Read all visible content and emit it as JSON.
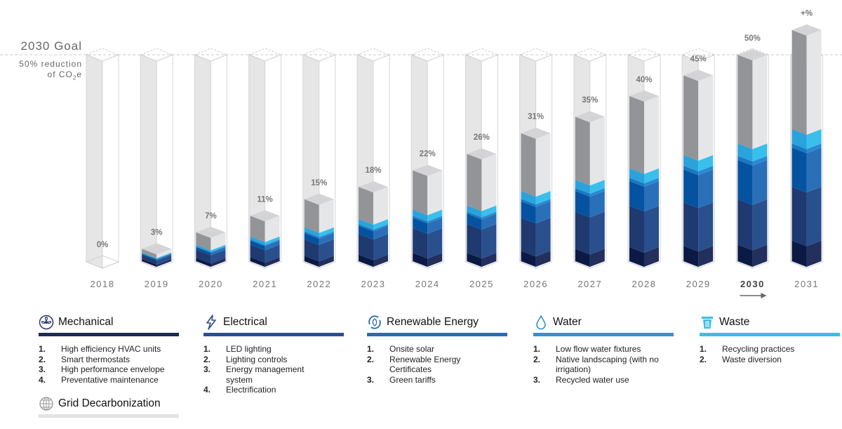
{
  "goal": {
    "title": "2030 Goal",
    "subtitle_line1": "50% reduction",
    "subtitle_line2_pre": "of CO",
    "subtitle_sub": "2",
    "subtitle_line2_post": "e"
  },
  "chart_data": {
    "type": "bar",
    "stacked": true,
    "style": "isometric 3D columns",
    "goal_line_value": 50,
    "ylim": [
      0,
      56
    ],
    "categories": [
      "2018",
      "2019",
      "2020",
      "2021",
      "2022",
      "2023",
      "2024",
      "2025",
      "2026",
      "2027",
      "2028",
      "2029",
      "2030",
      "2031"
    ],
    "highlight_category": "2030",
    "data_labels": [
      "0%",
      "3%",
      "7%",
      "11%",
      "15%",
      "18%",
      "22%",
      "26%",
      "31%",
      "35%",
      "40%",
      "45%",
      "50%",
      "+%"
    ],
    "totals": [
      0,
      3,
      7,
      11,
      15,
      18,
      22,
      26,
      31,
      35,
      40,
      45,
      50,
      56
    ],
    "series": [
      {
        "name": "Mechanical",
        "color": "#0b1a45",
        "color_right": "#232f5c",
        "values": [
          0,
          0.5,
          0.8,
          1,
          1.3,
          1.6,
          2,
          2,
          2.5,
          3,
          3.4,
          3.7,
          4,
          5
        ]
      },
      {
        "name": "Electrical",
        "color": "#1f3a70",
        "color_right": "#29508d",
        "values": [
          0,
          1,
          2,
          3,
          4,
          5,
          6,
          7,
          8,
          9,
          10,
          10.5,
          11,
          13
        ]
      },
      {
        "name": "Renewable Energy",
        "color": "#0553a0",
        "color_right": "#2a70b8",
        "values": [
          0,
          0.3,
          0.6,
          1,
          1.5,
          2,
          2.5,
          2.5,
          4,
          5,
          6,
          8,
          9.5,
          9.5
        ]
      },
      {
        "name": "Water",
        "color": "#1a78c2",
        "color_right": "#2b88d2",
        "values": [
          0,
          0.1,
          0.2,
          0.3,
          0.4,
          0.4,
          0.5,
          0.5,
          0.6,
          0.7,
          0.8,
          0.9,
          1,
          1
        ]
      },
      {
        "name": "Waste",
        "color": "#2aa3dc",
        "color_right": "#39bfec",
        "values": [
          0,
          0.2,
          0.4,
          0.7,
          1,
          1.2,
          1.5,
          1.5,
          1.9,
          2,
          2.3,
          2.6,
          3,
          3.5
        ]
      },
      {
        "name": "Grid Decarbonization",
        "color": "#939498",
        "color_right": "#e5e6e8",
        "values": [
          0,
          0.9,
          3,
          5,
          6.8,
          7.8,
          9.5,
          12.5,
          14,
          15.3,
          17.5,
          19.3,
          21.5,
          24
        ]
      }
    ]
  },
  "legend": [
    {
      "title": "Mechanical",
      "icon": "fan-icon",
      "color": "#1f2a55",
      "items": [
        "High efficiency HVAC units",
        "Smart thermostats",
        "High performance envelope",
        "Preventative maintenance"
      ]
    },
    {
      "title": "Electrical",
      "icon": "lightning-icon",
      "color": "#2a4f8f",
      "items": [
        "LED lighting",
        "Lighting controls",
        "Energy management system",
        "Electrification"
      ]
    },
    {
      "title": "Renewable Energy",
      "icon": "renewable-cycle-icon",
      "color": "#2b6cb4",
      "items": [
        "Onsite solar",
        "Renewable Energy Certificates",
        "Green tariffs"
      ]
    },
    {
      "title": "Water",
      "icon": "water-drop-icon",
      "color": "#3a8fd0",
      "items": [
        "Low flow water fixtures",
        "Native landscaping (with no irrigation)",
        "Recycled water use"
      ]
    },
    {
      "title": "Waste",
      "icon": "trash-can-icon",
      "color": "#3bbde8",
      "items": [
        "Recycling practices",
        "Waste diversion"
      ]
    },
    {
      "title": "Grid Decarbonization",
      "icon": "globe-icon",
      "color": "#e3e3e3",
      "items": []
    }
  ],
  "numbers": [
    "1.",
    "2.",
    "3.",
    "4."
  ]
}
